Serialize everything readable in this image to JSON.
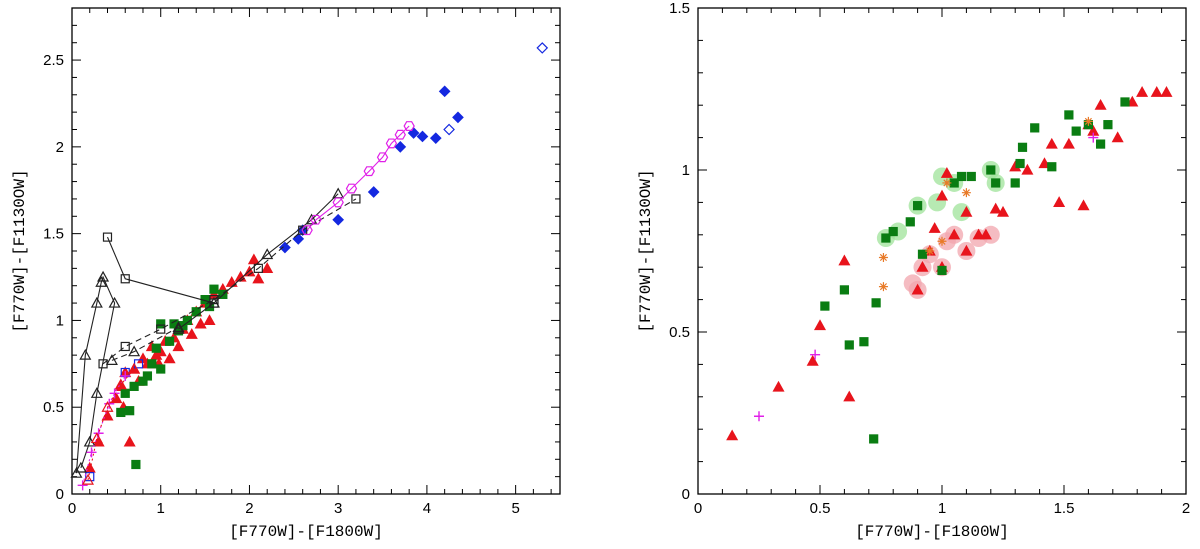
{
  "colors": {
    "red": "#e8141c",
    "green": "#0a7d12",
    "blue": "#1428e0",
    "magenta": "#e020e8",
    "black": "#222222",
    "orange": "#e87a28",
    "green_halo": "#9fe39a",
    "red_halo": "#f2a6ad"
  },
  "chart_data": [
    {
      "type": "scatter",
      "xlabel": "[F770W]-[F1800W]",
      "ylabel": "[F770W]-[F1130OW]",
      "xlim": [
        0,
        5.5
      ],
      "ylim": [
        0,
        2.8
      ],
      "xticks": [
        0,
        1,
        2,
        3,
        4,
        5
      ],
      "xtick_labels": [
        "0",
        "1",
        "2",
        "3",
        "4",
        "5"
      ],
      "yticks": [
        0,
        0.5,
        1,
        1.5,
        2,
        2.5
      ],
      "ytick_labels": [
        "0",
        "0.5",
        "1",
        "1.5",
        "2",
        "2.5"
      ],
      "grid": false,
      "series": [
        {
          "marker": "triangle",
          "color": "red",
          "filled": true,
          "points": [
            [
              0.2,
              0.15
            ],
            [
              0.3,
              0.3
            ],
            [
              0.4,
              0.45
            ],
            [
              0.5,
              0.55
            ],
            [
              0.55,
              0.62
            ],
            [
              0.6,
              0.7
            ],
            [
              0.65,
              0.3
            ],
            [
              0.7,
              0.72
            ],
            [
              0.75,
              0.65
            ],
            [
              0.8,
              0.78
            ],
            [
              0.85,
              0.75
            ],
            [
              0.9,
              0.85
            ],
            [
              0.95,
              0.8
            ],
            [
              1.0,
              0.82
            ],
            [
              1.05,
              0.88
            ],
            [
              1.1,
              0.78
            ],
            [
              1.15,
              0.9
            ],
            [
              1.2,
              0.85
            ],
            [
              1.25,
              0.95
            ],
            [
              1.3,
              1.0
            ],
            [
              1.35,
              0.92
            ],
            [
              1.4,
              1.05
            ],
            [
              1.5,
              1.1
            ],
            [
              1.55,
              1.0
            ],
            [
              1.6,
              1.15
            ],
            [
              1.7,
              1.18
            ],
            [
              1.8,
              1.22
            ],
            [
              1.9,
              1.25
            ],
            [
              2.0,
              1.28
            ],
            [
              2.1,
              1.24
            ],
            [
              2.2,
              1.3
            ],
            [
              2.05,
              1.35
            ],
            [
              0.58,
              0.5
            ],
            [
              0.98,
              0.75
            ],
            [
              1.45,
              0.98
            ]
          ]
        },
        {
          "marker": "square",
          "color": "green",
          "filled": true,
          "points": [
            [
              0.55,
              0.47
            ],
            [
              0.6,
              0.58
            ],
            [
              0.65,
              0.48
            ],
            [
              0.7,
              0.62
            ],
            [
              0.72,
              0.17
            ],
            [
              0.8,
              0.65
            ],
            [
              0.85,
              0.68
            ],
            [
              0.9,
              0.75
            ],
            [
              0.95,
              0.84
            ],
            [
              1.0,
              0.72
            ],
            [
              1.1,
              0.88
            ],
            [
              1.15,
              0.98
            ],
            [
              1.2,
              0.94
            ],
            [
              1.3,
              1.0
            ],
            [
              1.4,
              1.05
            ],
            [
              1.5,
              1.12
            ],
            [
              1.55,
              1.08
            ],
            [
              1.6,
              1.18
            ],
            [
              1.7,
              1.15
            ],
            [
              1.0,
              0.98
            ],
            [
              1.25,
              0.97
            ]
          ]
        },
        {
          "marker": "diamond",
          "color": "blue",
          "filled": true,
          "points": [
            [
              2.4,
              1.42
            ],
            [
              2.55,
              1.47
            ],
            [
              2.6,
              1.52
            ],
            [
              3.0,
              1.58
            ],
            [
              3.4,
              1.74
            ],
            [
              3.7,
              2.0
            ],
            [
              3.85,
              2.08
            ],
            [
              3.95,
              2.06
            ],
            [
              4.1,
              2.05
            ],
            [
              4.2,
              2.32
            ],
            [
              4.35,
              2.17
            ]
          ]
        },
        {
          "marker": "diamond",
          "color": "blue",
          "filled": false,
          "points": [
            [
              4.25,
              2.1
            ],
            [
              5.3,
              2.57
            ]
          ]
        },
        {
          "marker": "square",
          "color": "blue",
          "filled": false,
          "points": [
            [
              0.2,
              0.1
            ],
            [
              0.6,
              0.7
            ],
            [
              0.75,
              0.75
            ]
          ]
        },
        {
          "marker": "triangle",
          "color": "black",
          "filled": false,
          "line": "solid",
          "points": [
            [
              0.05,
              0.12
            ],
            [
              0.15,
              0.8
            ],
            [
              0.28,
              1.1
            ],
            [
              0.33,
              1.22
            ],
            [
              0.35,
              1.25
            ],
            [
              0.48,
              1.1
            ],
            [
              0.28,
              0.58
            ],
            [
              0.2,
              0.3
            ],
            [
              0.1,
              0.15
            ]
          ]
        },
        {
          "marker": "triangle",
          "color": "black",
          "filled": false,
          "line": "solid",
          "points": [
            [
              1.2,
              0.95
            ],
            [
              1.6,
              1.1
            ],
            [
              2.2,
              1.38
            ],
            [
              2.7,
              1.58
            ],
            [
              3.0,
              1.73
            ]
          ]
        },
        {
          "marker": "square",
          "color": "black",
          "filled": false,
          "line": "solid",
          "points": [
            [
              0.4,
              1.48
            ],
            [
              0.6,
              1.24
            ],
            [
              1.6,
              1.1
            ]
          ]
        },
        {
          "marker": "square",
          "color": "black",
          "filled": false,
          "line": "dashed",
          "points": [
            [
              0.35,
              0.75
            ],
            [
              0.6,
              0.85
            ],
            [
              1.0,
              0.95
            ],
            [
              1.6,
              1.12
            ],
            [
              2.1,
              1.3
            ],
            [
              2.6,
              1.52
            ],
            [
              3.2,
              1.7
            ]
          ]
        },
        {
          "marker": "triangle",
          "color": "black",
          "filled": false,
          "line": "dashed",
          "points": [
            [
              0.45,
              0.77
            ],
            [
              0.7,
              0.82
            ],
            [
              1.2,
              0.96
            ]
          ]
        },
        {
          "marker": "hexagon",
          "color": "magenta",
          "filled": false,
          "line": "solid",
          "points": [
            [
              2.65,
              1.52
            ],
            [
              2.75,
              1.58
            ],
            [
              3.0,
              1.68
            ],
            [
              3.15,
              1.76
            ],
            [
              3.35,
              1.86
            ],
            [
              3.5,
              1.94
            ],
            [
              3.6,
              2.02
            ],
            [
              3.7,
              2.07
            ],
            [
              3.8,
              2.12
            ]
          ]
        },
        {
          "marker": "plus",
          "color": "magenta",
          "filled": false,
          "line": "dotted",
          "points": [
            [
              0.12,
              0.05
            ],
            [
              0.22,
              0.24
            ],
            [
              0.3,
              0.35
            ],
            [
              0.42,
              0.52
            ],
            [
              0.48,
              0.58
            ],
            [
              0.6,
              0.68
            ]
          ]
        },
        {
          "marker": "triangle",
          "color": "red",
          "filled": false,
          "line": "dotted",
          "points": [
            [
              0.18,
              0.08
            ],
            [
              0.28,
              0.32
            ],
            [
              0.4,
              0.5
            ],
            [
              0.55,
              0.63
            ],
            [
              0.7,
              0.72
            ]
          ]
        }
      ]
    },
    {
      "type": "scatter",
      "xlabel": "[F770W]-[F1800W]",
      "ylabel": "[F770W]-[F1130OW]",
      "xlim": [
        0,
        2
      ],
      "ylim": [
        0,
        1.5
      ],
      "xticks": [
        0,
        0.5,
        1,
        1.5,
        2
      ],
      "xtick_labels": [
        "0",
        "0.5",
        "1",
        "1.5",
        "2"
      ],
      "yticks": [
        0,
        0.5,
        1,
        1.5
      ],
      "ytick_labels": [
        "0",
        "0.5",
        "1",
        "1.5"
      ],
      "grid": false,
      "series": [
        {
          "marker": "triangle",
          "color": "red",
          "filled": true,
          "points": [
            [
              0.14,
              0.18
            ],
            [
              0.33,
              0.33
            ],
            [
              0.47,
              0.41
            ],
            [
              0.5,
              0.52
            ],
            [
              0.6,
              0.72
            ],
            [
              0.62,
              0.3
            ],
            [
              0.9,
              0.63
            ],
            [
              0.92,
              0.7
            ],
            [
              0.95,
              0.75
            ],
            [
              1.0,
              0.7
            ],
            [
              1.02,
              0.99
            ],
            [
              1.05,
              0.8
            ],
            [
              1.1,
              0.75
            ],
            [
              1.1,
              0.87
            ],
            [
              1.15,
              0.8
            ],
            [
              1.18,
              0.8
            ],
            [
              1.22,
              0.88
            ],
            [
              1.25,
              0.87
            ],
            [
              1.3,
              1.01
            ],
            [
              1.35,
              1.0
            ],
            [
              1.42,
              1.02
            ],
            [
              1.45,
              1.08
            ],
            [
              1.48,
              0.9
            ],
            [
              1.52,
              1.08
            ],
            [
              1.58,
              0.89
            ],
            [
              1.6,
              1.14
            ],
            [
              1.62,
              1.12
            ],
            [
              1.65,
              1.2
            ],
            [
              1.72,
              1.1
            ],
            [
              1.78,
              1.21
            ],
            [
              1.82,
              1.24
            ],
            [
              1.88,
              1.24
            ],
            [
              1.92,
              1.24
            ],
            [
              1.0,
              0.92
            ],
            [
              0.97,
              0.82
            ]
          ]
        },
        {
          "marker": "square",
          "color": "green",
          "filled": true,
          "points": [
            [
              0.52,
              0.58
            ],
            [
              0.6,
              0.63
            ],
            [
              0.62,
              0.46
            ],
            [
              0.68,
              0.47
            ],
            [
              0.72,
              0.17
            ],
            [
              0.73,
              0.59
            ],
            [
              0.77,
              0.79
            ],
            [
              0.8,
              0.81
            ],
            [
              0.87,
              0.84
            ],
            [
              0.9,
              0.89
            ],
            [
              0.92,
              0.74
            ],
            [
              1.0,
              0.69
            ],
            [
              1.05,
              0.96
            ],
            [
              1.08,
              0.98
            ],
            [
              1.12,
              0.98
            ],
            [
              1.2,
              1.0
            ],
            [
              1.22,
              0.96
            ],
            [
              1.3,
              0.96
            ],
            [
              1.32,
              1.02
            ],
            [
              1.33,
              1.07
            ],
            [
              1.38,
              1.13
            ],
            [
              1.45,
              1.01
            ],
            [
              1.52,
              1.17
            ],
            [
              1.55,
              1.12
            ],
            [
              1.6,
              1.14
            ],
            [
              1.65,
              1.08
            ],
            [
              1.68,
              1.14
            ],
            [
              1.75,
              1.21
            ]
          ]
        },
        {
          "marker": "star",
          "color": "orange",
          "filled": true,
          "points": [
            [
              0.76,
              0.73
            ],
            [
              0.76,
              0.64
            ],
            [
              0.95,
              0.75
            ],
            [
              1.0,
              0.78
            ],
            [
              1.02,
              0.96
            ],
            [
              1.1,
              0.93
            ],
            [
              1.6,
              1.15
            ]
          ]
        },
        {
          "marker": "plus",
          "color": "magenta",
          "filled": false,
          "points": [
            [
              0.25,
              0.24
            ],
            [
              0.48,
              0.43
            ],
            [
              1.62,
              1.1
            ]
          ]
        },
        {
          "marker": "halo",
          "color": "green_halo",
          "filled": true,
          "points": [
            [
              0.77,
              0.79
            ],
            [
              0.82,
              0.81
            ],
            [
              0.9,
              0.89
            ],
            [
              0.98,
              0.9
            ],
            [
              1.05,
              0.96
            ],
            [
              1.08,
              0.87
            ],
            [
              1.0,
              0.98
            ],
            [
              1.2,
              1.0
            ],
            [
              1.22,
              0.96
            ]
          ]
        },
        {
          "marker": "halo",
          "color": "red_halo",
          "filled": true,
          "points": [
            [
              0.88,
              0.65
            ],
            [
              0.9,
              0.63
            ],
            [
              0.92,
              0.7
            ],
            [
              0.95,
              0.74
            ],
            [
              1.0,
              0.7
            ],
            [
              1.02,
              0.78
            ],
            [
              1.05,
              0.8
            ],
            [
              1.1,
              0.75
            ],
            [
              1.15,
              0.79
            ],
            [
              1.2,
              0.8
            ]
          ]
        }
      ]
    }
  ]
}
